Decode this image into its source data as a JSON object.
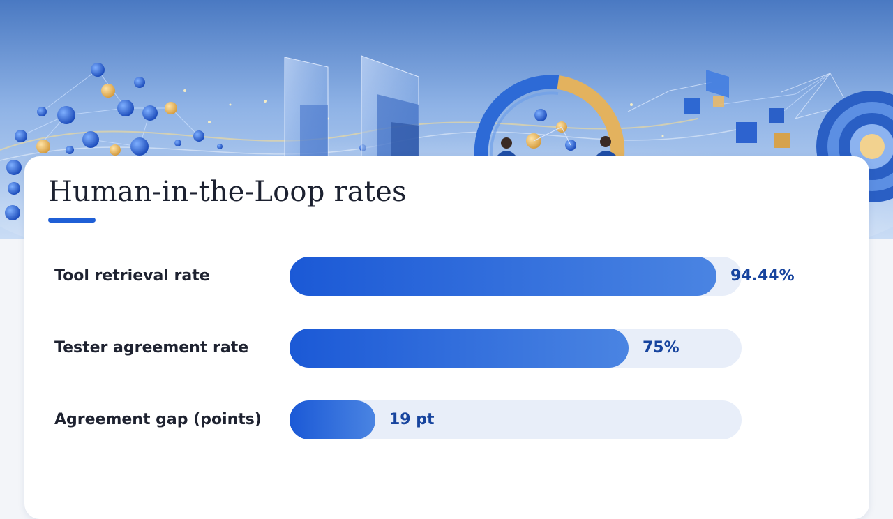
{
  "title": "Human-in-the-Loop rates",
  "colors": {
    "accent": "#1f5fd6",
    "bar_start": "#1b59d6",
    "bar_end": "#4a84e2",
    "track": "#e8eef9",
    "value_text": "#17449e"
  },
  "chart_data": {
    "type": "bar",
    "orientation": "horizontal",
    "categories": [
      "Tool retrieval rate",
      "Tester agreement rate",
      "Agreement gap (points)"
    ],
    "values": [
      94.44,
      75,
      19
    ],
    "value_labels": [
      "94.44%",
      "75%",
      "19 pt"
    ],
    "xlim": [
      0,
      100
    ],
    "title": "Human-in-the-Loop rates",
    "xlabel": "",
    "ylabel": ""
  }
}
